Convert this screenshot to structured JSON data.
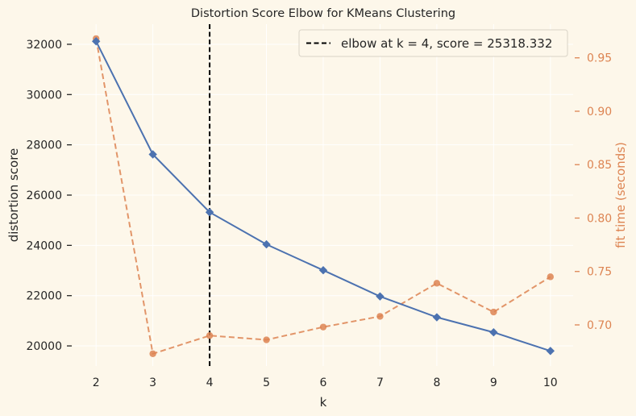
{
  "chart_data": {
    "type": "line",
    "title": "Distortion Score Elbow for KMeans Clustering",
    "xlabel": "k",
    "ylabel": "distortion score",
    "y2label": "fit time (seconds)",
    "x": [
      2,
      3,
      4,
      5,
      6,
      7,
      8,
      9,
      10
    ],
    "xlim": [
      1.6,
      10.4
    ],
    "ylim": [
      19200,
      32800
    ],
    "y2lim": [
      0.6615,
      0.9815
    ],
    "yticks": [
      20000,
      22000,
      24000,
      26000,
      28000,
      30000,
      32000
    ],
    "y2ticks": [
      0.7,
      0.75,
      0.8,
      0.85,
      0.9,
      0.95
    ],
    "grid": true,
    "legend_position": "top-right",
    "series": [
      {
        "axis": "left",
        "values": [
          32120,
          27620,
          25318.332,
          24040,
          23010,
          21970,
          21140,
          20540,
          19800
        ],
        "color": "#4c72b0",
        "marker": "diamond",
        "linestyle": "solid"
      },
      {
        "axis": "right",
        "values": [
          0.968,
          0.673,
          0.69,
          0.686,
          0.698,
          0.708,
          0.739,
          0.712,
          0.745
        ],
        "color": "#dd8452",
        "marker": "circle",
        "linestyle": "dashed"
      }
    ],
    "elbow": {
      "k": 4,
      "score": "25318.332",
      "legend_text": "elbow at k = 4, score = 25318.332",
      "color": "#000000"
    }
  }
}
